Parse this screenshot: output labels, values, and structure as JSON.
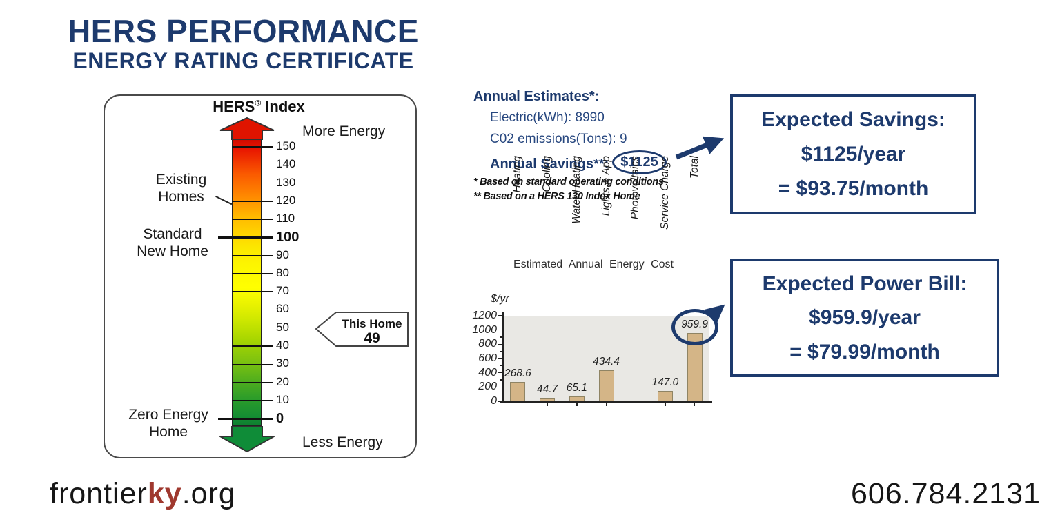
{
  "header": {
    "title_line1": "HERS PERFORMANCE",
    "title_line2": "ENERGY RATING CERTIFICATE"
  },
  "gauge": {
    "title_main": "HERS",
    "title_sup": "®",
    "title_rest": " Index",
    "more_energy": "More Energy",
    "less_energy": "Less Energy",
    "existing_homes_line1": "Existing",
    "existing_homes_line2": "Homes",
    "standard_line1": "Standard",
    "standard_line2": "New Home",
    "zero_line1": "Zero Energy",
    "zero_line2": "Home",
    "ticks": [
      150,
      140,
      130,
      120,
      110,
      100,
      90,
      80,
      70,
      60,
      50,
      40,
      30,
      20,
      10,
      0
    ],
    "bold_ticks": [
      100,
      0
    ],
    "this_home_label": "This Home",
    "this_home_value": "49"
  },
  "estimates": {
    "heading": "Annual Estimates*:",
    "electric_label": "Electric(kWh):",
    "electric_value": "8990",
    "co2_label": "C02 emissions(Tons):",
    "co2_value": "9",
    "savings_label": "Annual Savings**:",
    "savings_value": "$1125",
    "footnote1": "* Based on standard operating conditions",
    "footnote2": "** Based on a HERS 130 Index Home"
  },
  "savings_box": {
    "line1": "Expected Savings:",
    "line2": "$1125/year",
    "line3": "= $93.75/month"
  },
  "power_box": {
    "line1": "Expected Power Bill:",
    "line2": "$959.9/year",
    "line3": "= $79.99/month"
  },
  "chart_data": {
    "type": "bar",
    "title": "Estimated Annual Energy Cost",
    "ylabel": "$/yr",
    "xlabel": "",
    "categories": [
      "Heating",
      "Cooling",
      "Water Heating",
      "Lights & App",
      "Photovoltaics",
      "Service Charge",
      "Total"
    ],
    "values": [
      268.6,
      44.7,
      65.1,
      434.4,
      0,
      147.0,
      959.9
    ],
    "value_labels": [
      "268.6",
      "44.7",
      "65.1",
      "434.4",
      "",
      "147.0",
      "959.9"
    ],
    "yticks": [
      0,
      200,
      400,
      600,
      800,
      1000,
      1200
    ],
    "ylim": [
      0,
      1200
    ],
    "grid": false,
    "legend": false,
    "highlight_index": 6
  },
  "footer": {
    "site_prefix": "frontier",
    "site_ky": "ky",
    "site_suffix": ".org",
    "phone": "606.784.2131"
  },
  "colors": {
    "navy": "#1d3a6d",
    "ky_red": "#9f382e",
    "bar_fill": "#d4b587",
    "bar_border": "#8f8464",
    "plot_bg": "#e9e8e4",
    "gauge_red": "#e01400",
    "gauge_green": "#0f8c38"
  }
}
